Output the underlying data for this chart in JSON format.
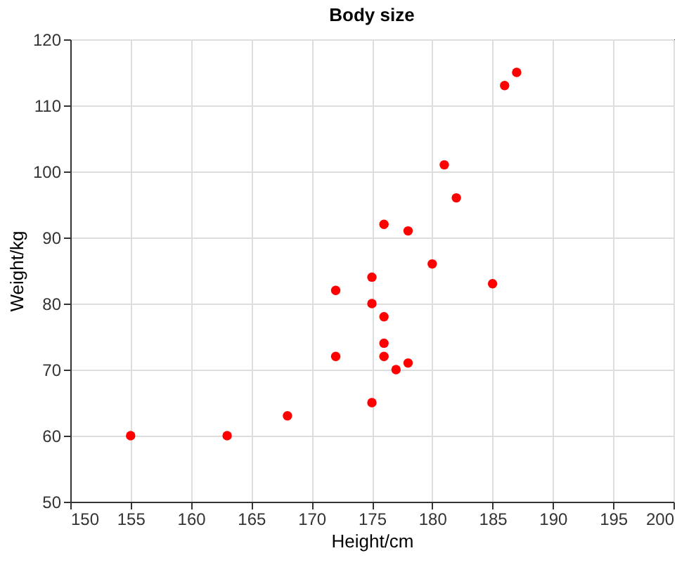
{
  "chart_data": {
    "type": "scatter",
    "title": "Body size",
    "xlabel": "Height/cm",
    "ylabel": "Weight/kg",
    "x": [
      155,
      163,
      168,
      172,
      172,
      175,
      175,
      175,
      176,
      176,
      176,
      176,
      177,
      178,
      178,
      180,
      181,
      182,
      185,
      186,
      187
    ],
    "series": [
      {
        "color": "#ff0000",
        "values": [
          60,
          60,
          63,
          82,
          72,
          84,
          80,
          65,
          92,
          78,
          74,
          72,
          70,
          91,
          71,
          86,
          101,
          96,
          83,
          113,
          115
        ]
      }
    ],
    "xlim": [
      150,
      200
    ],
    "xticks": [
      150,
      155,
      160,
      165,
      170,
      175,
      180,
      185,
      190,
      195,
      200
    ],
    "ylim": [
      50,
      120
    ],
    "yticks": [
      50,
      60,
      70,
      80,
      90,
      100,
      110,
      120
    ],
    "grid": true,
    "marker": "circle"
  }
}
